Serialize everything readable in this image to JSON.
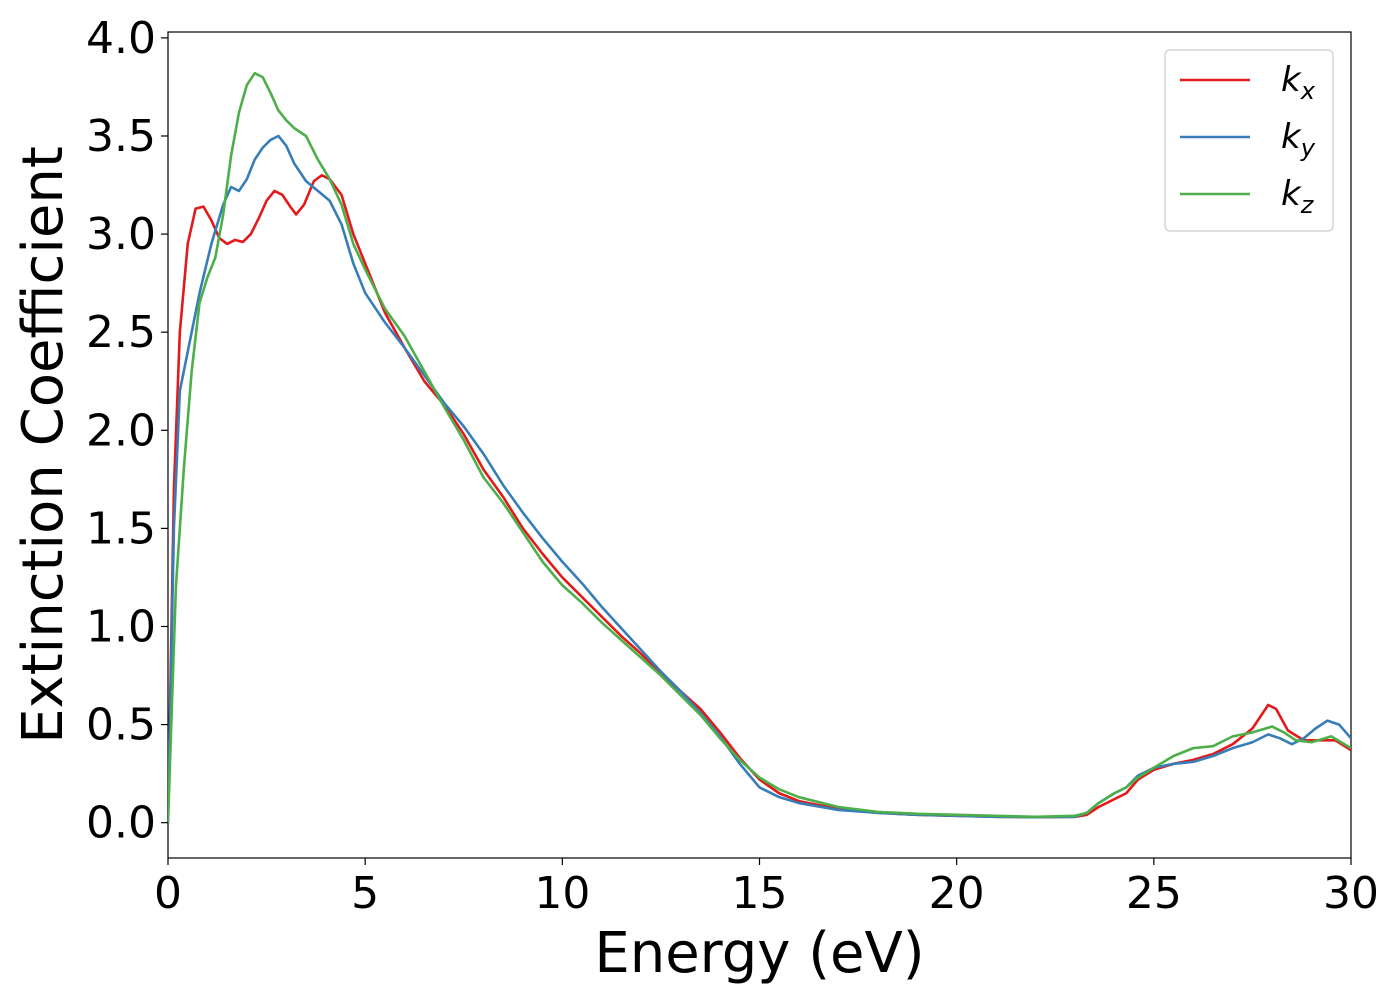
{
  "chart_data": {
    "type": "line",
    "title": "",
    "xlabel": "Energy (eV)",
    "ylabel": "Extinction Coefficient",
    "xlim": [
      0,
      30
    ],
    "ylim": [
      -0.18,
      4.03
    ],
    "xticks": [
      0,
      5,
      10,
      15,
      20,
      25,
      30
    ],
    "yticks": [
      0.0,
      0.5,
      1.0,
      1.5,
      2.0,
      2.5,
      3.0,
      3.5,
      4.0
    ],
    "xtick_labels": [
      "0",
      "5",
      "10",
      "15",
      "20",
      "25",
      "30"
    ],
    "ytick_labels": [
      "0.0",
      "0.5",
      "1.0",
      "1.5",
      "2.0",
      "2.5",
      "3.0",
      "3.5",
      "4.0"
    ],
    "grid": false,
    "legend": "top-right",
    "series": [
      {
        "name": "k_x",
        "color": "#e31a1c",
        "points": [
          [
            0,
            0.0
          ],
          [
            0.15,
            1.7
          ],
          [
            0.3,
            2.5
          ],
          [
            0.5,
            2.95
          ],
          [
            0.7,
            3.13
          ],
          [
            0.9,
            3.14
          ],
          [
            1.1,
            3.07
          ],
          [
            1.3,
            2.98
          ],
          [
            1.5,
            2.95
          ],
          [
            1.7,
            2.97
          ],
          [
            1.9,
            2.96
          ],
          [
            2.1,
            3.0
          ],
          [
            2.3,
            3.08
          ],
          [
            2.5,
            3.17
          ],
          [
            2.7,
            3.22
          ],
          [
            2.9,
            3.2
          ],
          [
            3.1,
            3.14
          ],
          [
            3.25,
            3.1
          ],
          [
            3.45,
            3.15
          ],
          [
            3.7,
            3.27
          ],
          [
            3.9,
            3.3
          ],
          [
            4.1,
            3.28
          ],
          [
            4.4,
            3.2
          ],
          [
            4.7,
            3.0
          ],
          [
            5.0,
            2.85
          ],
          [
            5.5,
            2.6
          ],
          [
            6.0,
            2.42
          ],
          [
            6.5,
            2.25
          ],
          [
            7.0,
            2.13
          ],
          [
            7.5,
            1.98
          ],
          [
            8.0,
            1.8
          ],
          [
            8.5,
            1.66
          ],
          [
            9.0,
            1.5
          ],
          [
            9.5,
            1.37
          ],
          [
            10.0,
            1.25
          ],
          [
            10.5,
            1.15
          ],
          [
            11.0,
            1.05
          ],
          [
            11.5,
            0.95
          ],
          [
            12.0,
            0.86
          ],
          [
            12.5,
            0.76
          ],
          [
            13.0,
            0.67
          ],
          [
            13.5,
            0.58
          ],
          [
            14.0,
            0.46
          ],
          [
            14.5,
            0.33
          ],
          [
            15.0,
            0.22
          ],
          [
            15.5,
            0.15
          ],
          [
            16.0,
            0.11
          ],
          [
            17.0,
            0.07
          ],
          [
            18.0,
            0.05
          ],
          [
            19.0,
            0.04
          ],
          [
            20.0,
            0.035
          ],
          [
            21.0,
            0.03
          ],
          [
            22.0,
            0.028
          ],
          [
            23.0,
            0.03
          ],
          [
            23.3,
            0.04
          ],
          [
            23.6,
            0.08
          ],
          [
            24.0,
            0.12
          ],
          [
            24.3,
            0.15
          ],
          [
            24.6,
            0.22
          ],
          [
            25.0,
            0.27
          ],
          [
            25.5,
            0.3
          ],
          [
            26.0,
            0.32
          ],
          [
            26.5,
            0.35
          ],
          [
            27.0,
            0.4
          ],
          [
            27.5,
            0.48
          ],
          [
            27.9,
            0.6
          ],
          [
            28.1,
            0.58
          ],
          [
            28.4,
            0.47
          ],
          [
            28.8,
            0.42
          ],
          [
            29.2,
            0.42
          ],
          [
            29.6,
            0.42
          ],
          [
            30.0,
            0.37
          ]
        ]
      },
      {
        "name": "k_y",
        "color": "#377eb8",
        "points": [
          [
            0,
            0.0
          ],
          [
            0.15,
            1.5
          ],
          [
            0.3,
            2.2
          ],
          [
            0.5,
            2.4
          ],
          [
            0.8,
            2.7
          ],
          [
            1.1,
            2.95
          ],
          [
            1.4,
            3.15
          ],
          [
            1.6,
            3.24
          ],
          [
            1.8,
            3.22
          ],
          [
            2.0,
            3.28
          ],
          [
            2.2,
            3.38
          ],
          [
            2.4,
            3.44
          ],
          [
            2.6,
            3.48
          ],
          [
            2.8,
            3.5
          ],
          [
            3.0,
            3.45
          ],
          [
            3.2,
            3.36
          ],
          [
            3.5,
            3.27
          ],
          [
            3.8,
            3.22
          ],
          [
            4.1,
            3.17
          ],
          [
            4.4,
            3.05
          ],
          [
            4.7,
            2.85
          ],
          [
            5.0,
            2.7
          ],
          [
            5.5,
            2.55
          ],
          [
            6.0,
            2.42
          ],
          [
            6.5,
            2.28
          ],
          [
            7.0,
            2.14
          ],
          [
            7.5,
            2.02
          ],
          [
            8.0,
            1.88
          ],
          [
            8.5,
            1.72
          ],
          [
            9.0,
            1.58
          ],
          [
            9.5,
            1.45
          ],
          [
            10.0,
            1.33
          ],
          [
            10.5,
            1.22
          ],
          [
            11.0,
            1.1
          ],
          [
            11.5,
            0.99
          ],
          [
            12.0,
            0.88
          ],
          [
            12.5,
            0.77
          ],
          [
            13.0,
            0.67
          ],
          [
            13.5,
            0.56
          ],
          [
            14.0,
            0.44
          ],
          [
            14.5,
            0.3
          ],
          [
            15.0,
            0.18
          ],
          [
            15.5,
            0.13
          ],
          [
            16.0,
            0.1
          ],
          [
            17.0,
            0.065
          ],
          [
            18.0,
            0.05
          ],
          [
            19.0,
            0.04
          ],
          [
            20.0,
            0.035
          ],
          [
            21.0,
            0.03
          ],
          [
            22.0,
            0.028
          ],
          [
            23.0,
            0.03
          ],
          [
            23.3,
            0.05
          ],
          [
            23.6,
            0.1
          ],
          [
            24.0,
            0.15
          ],
          [
            24.3,
            0.18
          ],
          [
            24.6,
            0.24
          ],
          [
            25.0,
            0.28
          ],
          [
            25.5,
            0.3
          ],
          [
            26.0,
            0.31
          ],
          [
            26.5,
            0.34
          ],
          [
            27.0,
            0.38
          ],
          [
            27.5,
            0.41
          ],
          [
            27.9,
            0.45
          ],
          [
            28.2,
            0.43
          ],
          [
            28.5,
            0.4
          ],
          [
            28.8,
            0.43
          ],
          [
            29.1,
            0.48
          ],
          [
            29.4,
            0.52
          ],
          [
            29.7,
            0.5
          ],
          [
            30.0,
            0.43
          ]
        ]
      },
      {
        "name": "k_z",
        "color": "#4daf4a",
        "points": [
          [
            0,
            0.0
          ],
          [
            0.2,
            1.2
          ],
          [
            0.4,
            1.8
          ],
          [
            0.6,
            2.3
          ],
          [
            0.8,
            2.65
          ],
          [
            1.0,
            2.78
          ],
          [
            1.2,
            2.88
          ],
          [
            1.4,
            3.1
          ],
          [
            1.6,
            3.4
          ],
          [
            1.8,
            3.62
          ],
          [
            2.0,
            3.76
          ],
          [
            2.2,
            3.82
          ],
          [
            2.4,
            3.8
          ],
          [
            2.6,
            3.72
          ],
          [
            2.8,
            3.63
          ],
          [
            3.0,
            3.58
          ],
          [
            3.2,
            3.54
          ],
          [
            3.5,
            3.5
          ],
          [
            3.8,
            3.38
          ],
          [
            4.1,
            3.28
          ],
          [
            4.4,
            3.15
          ],
          [
            4.7,
            2.95
          ],
          [
            5.0,
            2.82
          ],
          [
            5.5,
            2.62
          ],
          [
            6.0,
            2.48
          ],
          [
            6.5,
            2.3
          ],
          [
            7.0,
            2.12
          ],
          [
            7.5,
            1.95
          ],
          [
            8.0,
            1.76
          ],
          [
            8.5,
            1.63
          ],
          [
            9.0,
            1.48
          ],
          [
            9.5,
            1.33
          ],
          [
            10.0,
            1.21
          ],
          [
            10.5,
            1.12
          ],
          [
            11.0,
            1.02
          ],
          [
            11.5,
            0.93
          ],
          [
            12.0,
            0.84
          ],
          [
            12.5,
            0.75
          ],
          [
            13.0,
            0.65
          ],
          [
            13.5,
            0.55
          ],
          [
            14.0,
            0.43
          ],
          [
            14.5,
            0.32
          ],
          [
            15.0,
            0.23
          ],
          [
            15.5,
            0.17
          ],
          [
            16.0,
            0.13
          ],
          [
            17.0,
            0.08
          ],
          [
            18.0,
            0.055
          ],
          [
            19.0,
            0.045
          ],
          [
            20.0,
            0.04
          ],
          [
            21.0,
            0.035
          ],
          [
            22.0,
            0.03
          ],
          [
            23.0,
            0.035
          ],
          [
            23.3,
            0.05
          ],
          [
            23.6,
            0.1
          ],
          [
            24.0,
            0.15
          ],
          [
            24.3,
            0.18
          ],
          [
            24.6,
            0.23
          ],
          [
            25.0,
            0.28
          ],
          [
            25.5,
            0.34
          ],
          [
            26.0,
            0.38
          ],
          [
            26.5,
            0.39
          ],
          [
            27.0,
            0.44
          ],
          [
            27.5,
            0.46
          ],
          [
            28.0,
            0.49
          ],
          [
            28.3,
            0.46
          ],
          [
            28.6,
            0.42
          ],
          [
            29.0,
            0.41
          ],
          [
            29.5,
            0.44
          ],
          [
            30.0,
            0.38
          ]
        ]
      }
    ],
    "legend_entries": [
      {
        "base": "k",
        "sub": "x",
        "color": "#e31a1c"
      },
      {
        "base": "k",
        "sub": "y",
        "color": "#377eb8"
      },
      {
        "base": "k",
        "sub": "z",
        "color": "#4daf4a"
      }
    ]
  }
}
